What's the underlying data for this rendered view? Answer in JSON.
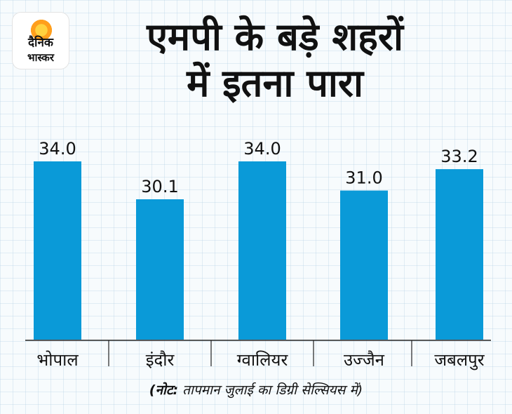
{
  "logo": {
    "line1": "दैनिक",
    "line2": "भास्कर"
  },
  "title_line1": "एमपी के बड़े शहरों",
  "title_line2": "में इतना पारा",
  "note": {
    "prefix": "(नोट:",
    "text": " तापमान  जुलाई का डिग्री सेल्सियस में)"
  },
  "colors": {
    "bar": "#0a9ad8",
    "axis": "#222222"
  },
  "chart_data": {
    "type": "bar",
    "categories": [
      "भोपाल",
      "इंदौर",
      "ग्वालियर",
      "उज्जैन",
      "जबलपुर"
    ],
    "values": [
      34.0,
      30.1,
      34.0,
      31.0,
      33.2
    ],
    "value_labels": [
      "34.0",
      "30.1",
      "34.0",
      "31.0",
      "33.2"
    ],
    "title": "एमपी के बड़े शहरों में इतना पारा",
    "xlabel": "",
    "ylabel": "",
    "grid": false,
    "legend": "none"
  }
}
